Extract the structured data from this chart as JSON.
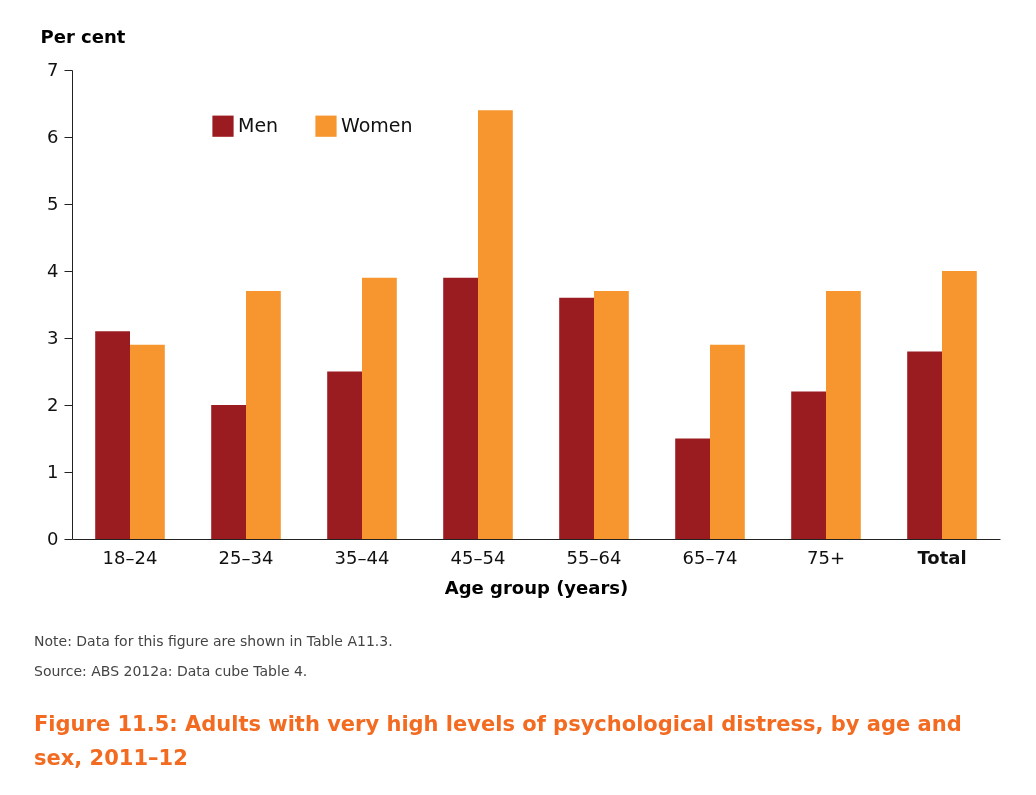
{
  "chart_data": {
    "type": "bar",
    "title": "Figure 11.5: Adults with very high levels of psychological distress, by age and sex, 2011–12",
    "xlabel": "Age group (years)",
    "ylabel": "Per cent",
    "categories": [
      "18–24",
      "25–34",
      "35–44",
      "45–54",
      "55–64",
      "65–74",
      "75+",
      "Total"
    ],
    "series": [
      {
        "name": "Men",
        "color": "#9b1c20",
        "values": [
          3.1,
          2.0,
          2.5,
          3.9,
          3.6,
          1.5,
          2.2,
          2.8
        ]
      },
      {
        "name": "Women",
        "color": "#f7962f",
        "values": [
          2.9,
          3.7,
          3.9,
          6.4,
          3.7,
          2.9,
          3.7,
          4.0
        ]
      }
    ],
    "ylim": [
      0,
      7
    ],
    "yticks": [
      0,
      1,
      2,
      3,
      4,
      5,
      6,
      7
    ],
    "grid": false,
    "legend": "top left",
    "annotations": [
      "Note: Data for this figure are shown in Table A11.3.",
      "Source: ABS 2012a: Data cube Table 4."
    ]
  }
}
